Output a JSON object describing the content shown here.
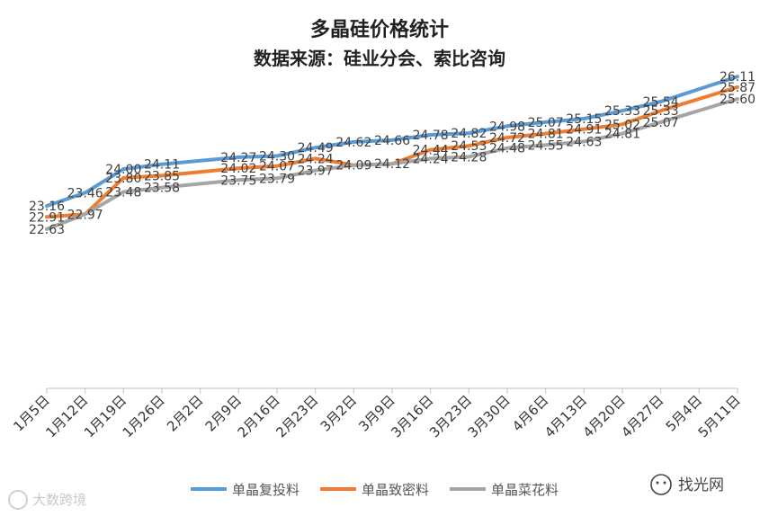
{
  "chart_data": {
    "type": "line",
    "title": "多晶硅价格统计",
    "subtitle": "数据来源：硅业分会、索比咨询",
    "categories": [
      "1月5日",
      "1月12日",
      "1月19日",
      "1月26日",
      "2月2日",
      "2月9日",
      "2月16日",
      "2月23日",
      "3月2日",
      "3月9日",
      "3月16日",
      "3月23日",
      "3月30日",
      "4月6日",
      "4月13日",
      "4月20日",
      "4月27日",
      "5月4日",
      "5月11日"
    ],
    "ylim": [
      19.0,
      27.2
    ],
    "series": [
      {
        "name": "单晶复投料",
        "color": "#5b9bd5",
        "values": [
          23.16,
          23.46,
          24.0,
          24.11,
          null,
          24.27,
          24.3,
          24.49,
          24.62,
          24.66,
          24.78,
          24.82,
          24.98,
          25.07,
          25.15,
          25.33,
          25.54,
          null,
          26.11
        ],
        "labels": [
          "23.16",
          "23.46",
          "24.00",
          "24.11",
          "",
          "24.27",
          "24.30",
          "24.49",
          "24.62",
          "24.66",
          "24.78",
          "24.82",
          "24.98",
          "25.07",
          "25.15",
          "25.33",
          "25.54",
          "",
          "26.11"
        ]
      },
      {
        "name": "单晶致密料",
        "color": "#ed7d31",
        "values": [
          22.91,
          22.97,
          23.8,
          23.85,
          null,
          24.02,
          24.07,
          24.24,
          24.09,
          24.12,
          24.44,
          24.53,
          24.72,
          24.81,
          24.91,
          25.02,
          25.33,
          null,
          25.87
        ],
        "labels": [
          "22.91",
          "22.97",
          "23.80",
          "23.85",
          "",
          "24.02",
          "24.07",
          "24.24",
          "24.09",
          "24.12",
          "24.44",
          "24.53",
          "24.72",
          "24.81",
          "24.91",
          "25.02",
          "25.33",
          "",
          "25.87"
        ]
      },
      {
        "name": "单晶菜花料",
        "color": "#a5a5a5",
        "values": [
          22.63,
          22.97,
          23.48,
          23.58,
          null,
          23.75,
          23.79,
          23.97,
          24.09,
          24.12,
          24.24,
          24.28,
          24.48,
          24.55,
          24.63,
          24.81,
          25.07,
          null,
          25.6
        ],
        "labels": [
          "22.63",
          "",
          "23.48",
          "23.58",
          "",
          "23.75",
          "23.79",
          "23.97",
          "",
          "",
          "24.24",
          "24.28",
          "24.48",
          "24.55",
          "24.63",
          "24.81",
          "25.07",
          "",
          "25.60"
        ]
      }
    ],
    "legend": "bottom"
  },
  "watermarks": {
    "left": "大数跨境",
    "right": "找光网"
  }
}
